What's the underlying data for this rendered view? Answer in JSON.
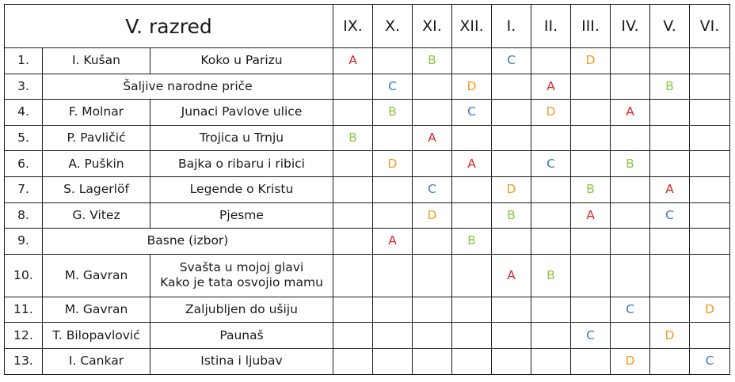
{
  "title": "V. razred",
  "months": [
    "IX.",
    "X.",
    "XI.",
    "XII.",
    "I.",
    "II.",
    "III.",
    "IV.",
    "V.",
    "VI."
  ],
  "grade_colors": {
    "A": "#d62728",
    "B": "#8cc63f",
    "C": "#3a78c9",
    "D": "#f29a1f"
  },
  "rows": [
    {
      "num": "1.",
      "author": "I. Kušan",
      "title": "Koko u Parizu",
      "grades": [
        "A",
        "",
        "B",
        "",
        "C",
        "",
        "D",
        "",
        "",
        ""
      ]
    },
    {
      "num": "3.",
      "author": "",
      "title": "Šaljive narodne priče",
      "grades": [
        "",
        "C",
        "",
        "D",
        "",
        "A",
        "",
        "",
        "B",
        ""
      ]
    },
    {
      "num": "4.",
      "author": "F. Molnar",
      "title": "Junaci Pavlove ulice",
      "grades": [
        "",
        "B",
        "",
        "C",
        "",
        "D",
        "",
        "A",
        "",
        ""
      ]
    },
    {
      "num": "5.",
      "author": "P. Pavličić",
      "title": "Trojica u Trnju",
      "grades": [
        "B",
        "",
        "A",
        "",
        "",
        "",
        "",
        "",
        "",
        ""
      ]
    },
    {
      "num": "6.",
      "author": "A. Puškin",
      "title": "Bajka o ribaru i ribici",
      "grades": [
        "",
        "D",
        "",
        "A",
        "",
        "C",
        "",
        "B",
        "",
        ""
      ]
    },
    {
      "num": "7.",
      "author": "S. Lagerlöf",
      "title": "Legende o Kristu",
      "grades": [
        "",
        "",
        "C",
        "",
        "D",
        "",
        "B",
        "",
        "A",
        ""
      ]
    },
    {
      "num": "8.",
      "author": "G. Vitez",
      "title": "Pjesme",
      "grades": [
        "",
        "",
        "D",
        "",
        "B",
        "",
        "A",
        "",
        "C",
        ""
      ]
    },
    {
      "num": "9.",
      "author": "",
      "title": "Basne (izbor)",
      "grades": [
        "",
        "A",
        "",
        "B",
        "",
        "",
        "",
        "",
        "",
        ""
      ]
    },
    {
      "num": "10.",
      "author": "M. Gavran",
      "title": "Svašta u mojoj glavi",
      "title2": "Kako je tata osvojio mamu",
      "grades": [
        "",
        "",
        "",
        "",
        "A",
        "B",
        "",
        "",
        "",
        ""
      ]
    },
    {
      "num": "11.",
      "author": "M. Gavran",
      "title": "Zaljubljen do ušiju",
      "grades": [
        "",
        "",
        "",
        "",
        "",
        "",
        "",
        "C",
        "",
        "D"
      ]
    },
    {
      "num": "12.",
      "author": "T. Bilopavlović",
      "title": "Paunaš",
      "grades": [
        "",
        "",
        "",
        "",
        "",
        "",
        "C",
        "",
        "D",
        ""
      ]
    },
    {
      "num": "13.",
      "author": "I. Cankar",
      "title": "Istina i ljubav",
      "grades": [
        "",
        "",
        "",
        "",
        "",
        "",
        "",
        "D",
        "",
        "C"
      ]
    }
  ]
}
